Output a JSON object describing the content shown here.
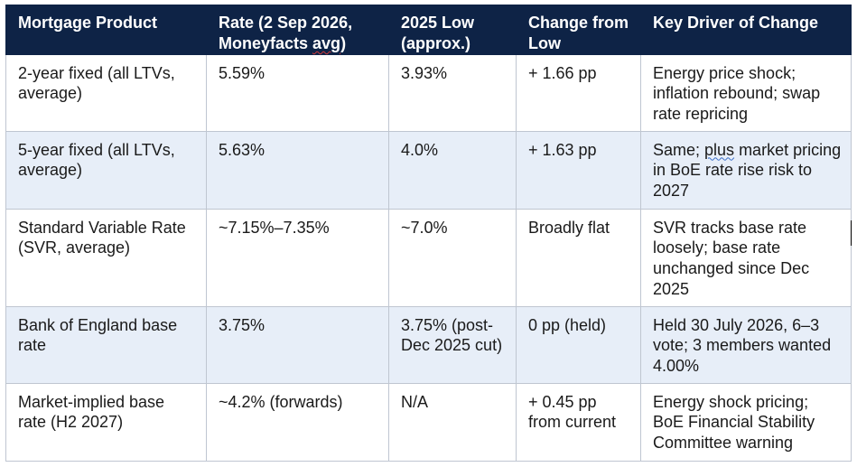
{
  "table": {
    "headers": [
      "Mortgage Product",
      "Rate (2 Sep 2026, Moneyfacts avg)",
      "2025 Low (approx.)",
      "Change from Low",
      "Key Driver of Change"
    ],
    "header_rate_prefix": "Rate (2 Sep 2026, Moneyfacts ",
    "header_rate_flagged_word": "avg",
    "header_rate_suffix": ")",
    "rows": [
      {
        "product": "2-year fixed (all LTVs, average)",
        "rate": "5.59%",
        "low": "3.93%",
        "change": "+ 1.66 pp",
        "driver": "Energy price shock; inflation rebound; swap rate repricing"
      },
      {
        "product": "5-year fixed (all LTVs, average)",
        "rate": "5.63%",
        "low": "4.0%",
        "change": "+ 1.63 pp",
        "driver_prefix": "Same; ",
        "driver_flagged_word": "plus",
        "driver_suffix": " market pricing in BoE rate rise risk to 2027"
      },
      {
        "product": "Standard Variable Rate (SVR, average)",
        "rate": "~7.15%–7.35%",
        "low": "~7.0%",
        "change": "Broadly flat",
        "driver": "SVR tracks base rate loosely; base rate unchanged since Dec 2025"
      },
      {
        "product": "Bank of England base rate",
        "rate": "3.75%",
        "low": "3.75% (post-Dec 2025 cut)",
        "change": "0 pp (held)",
        "driver": "Held 30 July 2026, 6–3 vote; 3 members wanted 4.00%"
      },
      {
        "product": "Market-implied base rate (H2 2027)",
        "rate": "~4.2% (forwards)",
        "low": "N/A",
        "change": "+ 0.45 pp from current",
        "driver": "Energy shock pricing; BoE Financial Stability Committee warning"
      }
    ]
  },
  "colors": {
    "header_bg": "#0e2346",
    "header_text": "#ffffff",
    "alt_row_bg": "#e7eef8",
    "border": "#bfc6d1"
  }
}
